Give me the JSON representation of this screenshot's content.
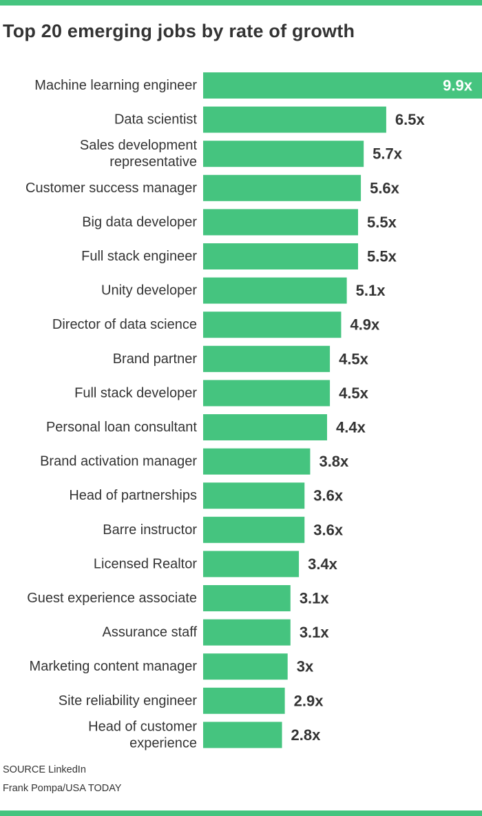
{
  "colors": {
    "bar": "#45c47f",
    "rule": "#45c47f",
    "text": "#333333",
    "inside_label": "#ffffff"
  },
  "title": "Top 20 emerging jobs by rate of growth",
  "source": {
    "line1": "SOURCE LinkedIn",
    "line2": "Frank Pompa/USA TODAY"
  },
  "chart_data": {
    "type": "bar",
    "orientation": "horizontal",
    "title": "Top 20 emerging jobs by rate of growth",
    "xlabel": "",
    "ylabel": "",
    "xlim": [
      0,
      9.9
    ],
    "grid": false,
    "categories": [
      [
        "Machine learning engineer"
      ],
      [
        "Data scientist"
      ],
      [
        "Sales development",
        "representative"
      ],
      [
        "Customer success manager"
      ],
      [
        "Big data developer"
      ],
      [
        "Full stack engineer"
      ],
      [
        "Unity developer"
      ],
      [
        "Director of data science"
      ],
      [
        "Brand partner"
      ],
      [
        "Full stack developer"
      ],
      [
        "Personal loan consultant"
      ],
      [
        "Brand activation manager"
      ],
      [
        "Head of partnerships"
      ],
      [
        "Barre instructor"
      ],
      [
        "Licensed Realtor"
      ],
      [
        "Guest experience associate"
      ],
      [
        "Assurance staff"
      ],
      [
        "Marketing content manager"
      ],
      [
        "Site reliability engineer"
      ],
      [
        "Head of customer",
        "experience"
      ]
    ],
    "values": [
      9.9,
      6.5,
      5.7,
      5.6,
      5.5,
      5.5,
      5.1,
      4.9,
      4.5,
      4.5,
      4.4,
      3.8,
      3.6,
      3.6,
      3.4,
      3.1,
      3.1,
      3.0,
      2.9,
      2.8
    ],
    "value_labels": [
      "9.9x",
      "6.5x",
      "5.7x",
      "5.6x",
      "5.5x",
      "5.5x",
      "5.1x",
      "4.9x",
      "4.5x",
      "4.5x",
      "4.4x",
      "3.8x",
      "3.6x",
      "3.6x",
      "3.4x",
      "3.1x",
      "3.1x",
      "3x",
      "2.9x",
      "2.8x"
    ],
    "label_inside_bar": [
      true,
      false,
      false,
      false,
      false,
      false,
      false,
      false,
      false,
      false,
      false,
      false,
      false,
      false,
      false,
      false,
      false,
      false,
      false,
      false
    ]
  }
}
